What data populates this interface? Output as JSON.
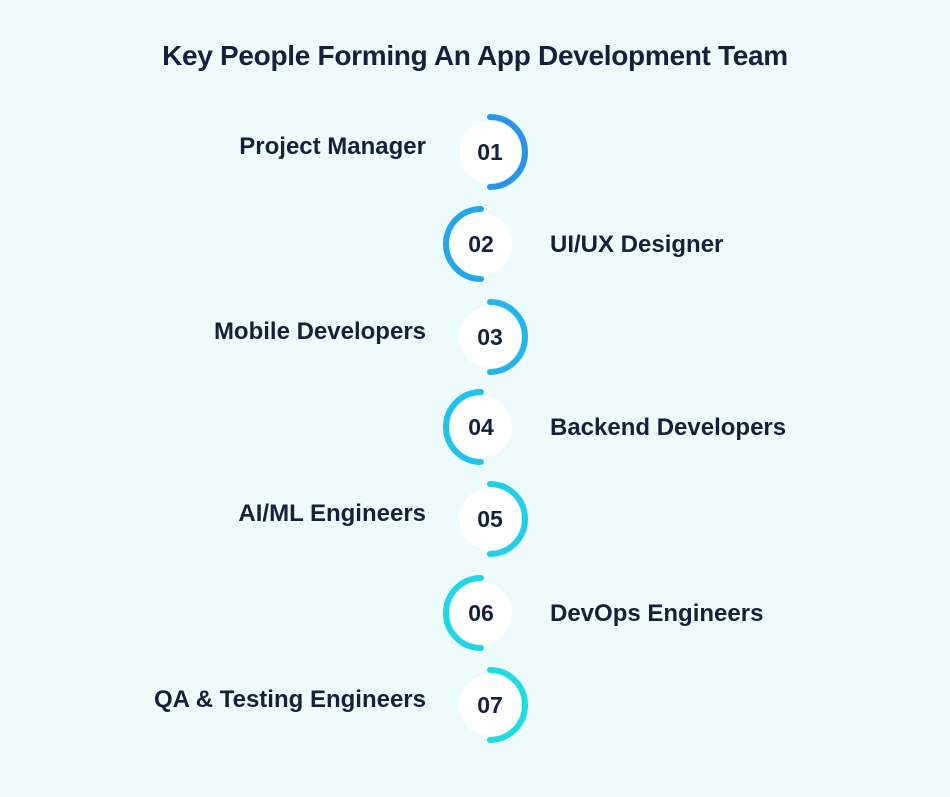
{
  "title": "Key People Forming An App Development Team",
  "colors": {
    "background": "#eefbfd",
    "text": "#14213d",
    "circle_fill": "#ffffff",
    "arc_colors": [
      "#2a93e8",
      "#27a6ea",
      "#25b5ea",
      "#23c2e9",
      "#22cde7",
      "#21d5e4",
      "#22dbe0"
    ]
  },
  "steps": [
    {
      "number": "01",
      "label": "Project Manager",
      "side": "left"
    },
    {
      "number": "02",
      "label": "UI/UX Designer",
      "side": "right"
    },
    {
      "number": "03",
      "label": "Mobile Developers",
      "side": "left"
    },
    {
      "number": "04",
      "label": "Backend Developers",
      "side": "right"
    },
    {
      "number": "05",
      "label": "AI/ML Engineers",
      "side": "left"
    },
    {
      "number": "06",
      "label": "DevOps Engineers",
      "side": "right"
    },
    {
      "number": "07",
      "label": "QA & Testing Engineers",
      "side": "left"
    }
  ]
}
